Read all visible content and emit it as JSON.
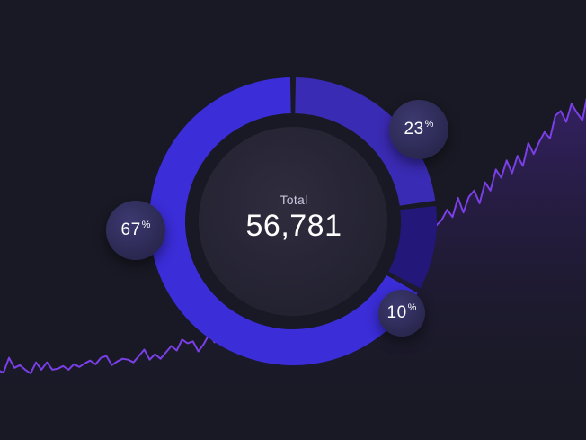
{
  "chart_data": [
    {
      "type": "pie",
      "subtype": "donut",
      "center_title": "Total",
      "center_value": "56,781",
      "slices": [
        {
          "label": "23%",
          "percent": 23,
          "color": "#3a2bb4"
        },
        {
          "label": "10%",
          "percent": 10,
          "color": "#23177a"
        },
        {
          "label": "67%",
          "percent": 67,
          "color": "#3b2dd8"
        }
      ]
    },
    {
      "type": "area",
      "values": [
        8,
        6,
        22,
        11,
        14,
        9,
        5,
        17,
        9,
        17,
        9,
        10,
        13,
        9,
        15,
        12,
        16,
        19,
        15,
        22,
        24,
        14,
        18,
        21,
        20,
        17,
        24,
        31,
        20,
        26,
        21,
        28,
        35,
        30,
        42,
        38,
        40,
        29,
        37,
        48,
        39,
        46,
        52,
        60,
        49,
        55,
        53,
        71,
        61,
        76,
        69,
        89,
        80,
        86,
        85,
        92,
        98,
        90,
        110,
        104,
        92,
        116,
        122,
        112,
        126,
        119,
        131,
        120,
        133,
        118,
        128,
        117,
        146,
        112,
        127,
        153,
        143,
        125,
        158,
        170,
        160,
        167,
        173,
        184,
        176,
        197,
        181,
        198,
        205,
        191,
        214,
        205,
        228,
        219,
        238,
        224,
        243,
        232,
        257,
        245,
        258,
        269,
        262,
        287,
        292,
        280,
        300,
        290,
        282,
        312
      ],
      "line_color": "#7a3fe6",
      "fill_color": "#3a2270"
    }
  ]
}
